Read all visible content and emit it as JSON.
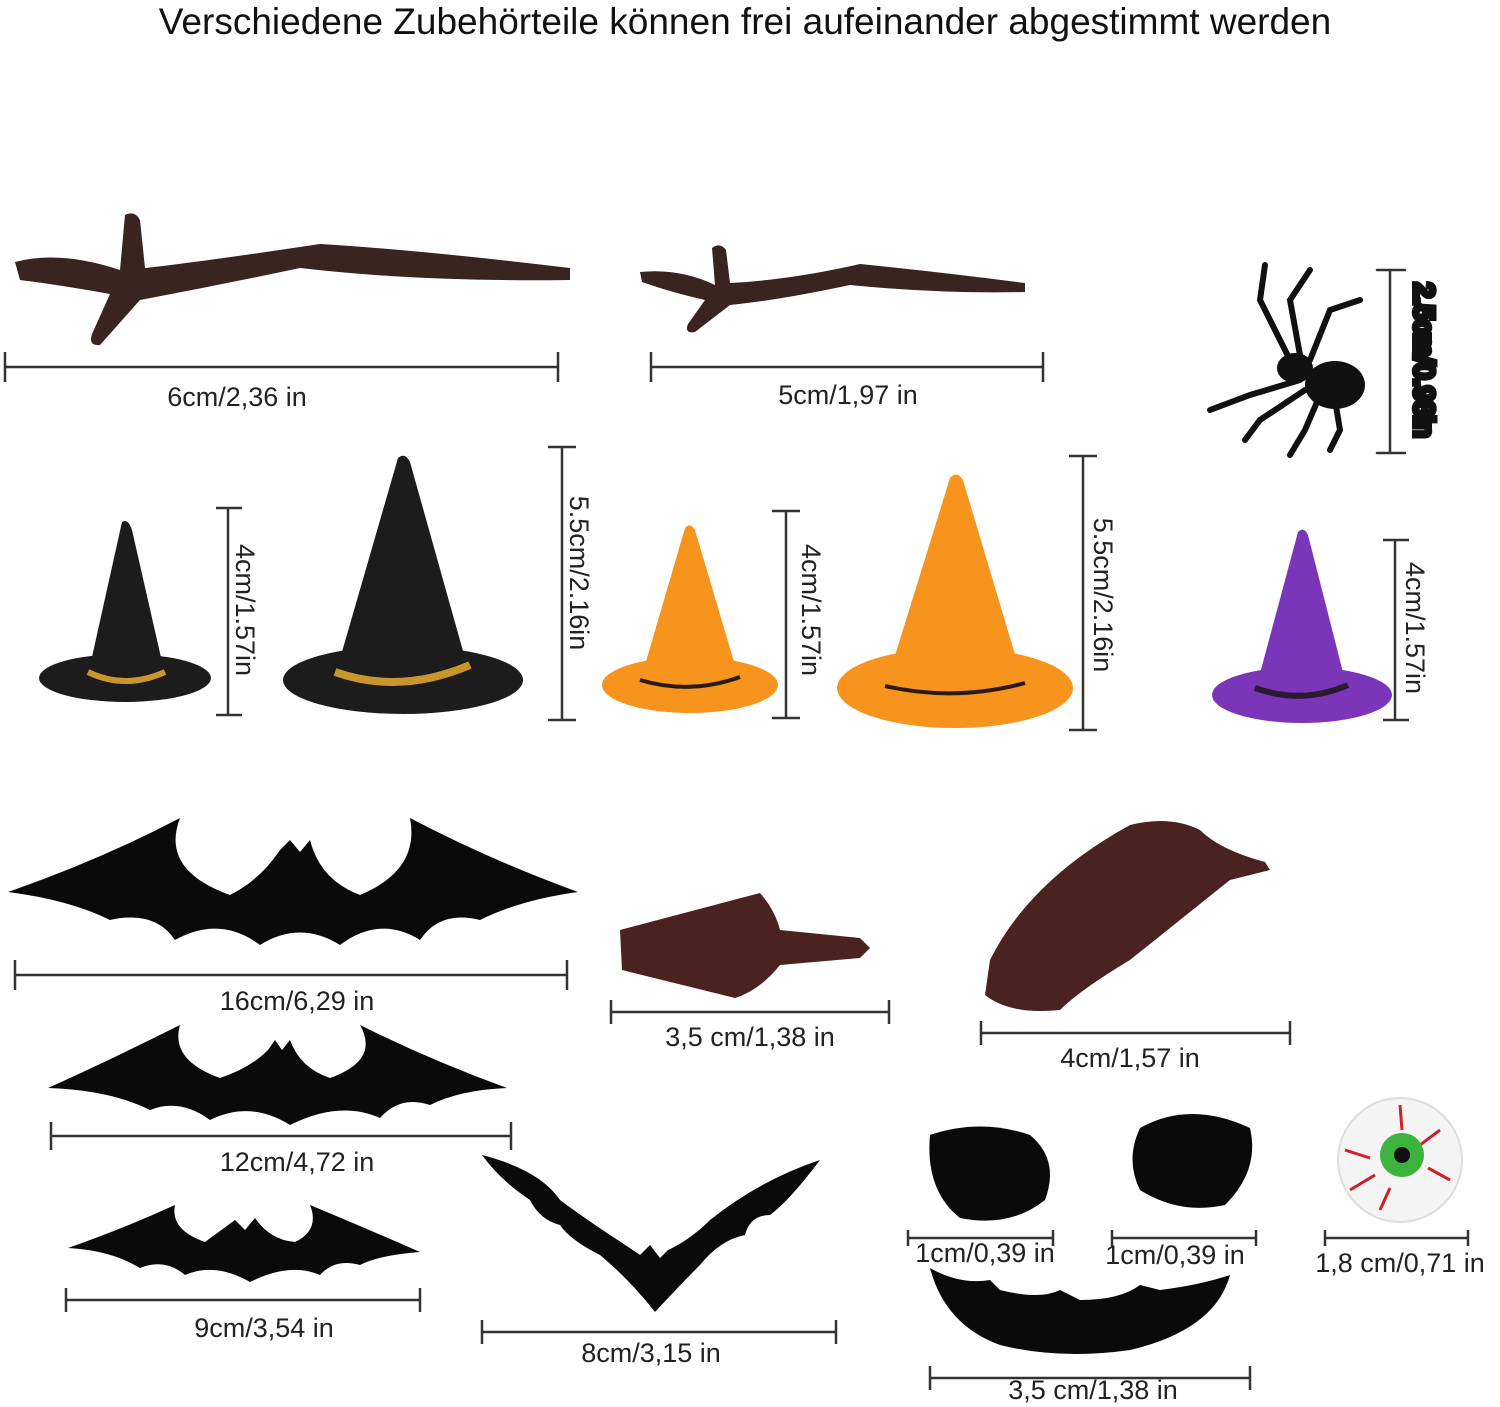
{
  "title": "Verschiedene Zubehörteile können frei aufeinander abgestimmt werden",
  "items": {
    "branch_large": {
      "label": "6cm/2,36 in",
      "color": "#3a2420"
    },
    "branch_small": {
      "label": "5cm/1,97 in",
      "color": "#3a2420"
    },
    "spider": {
      "label": "2.5cm/0.98in",
      "color": "#111111"
    },
    "hat_black_small": {
      "label": "4cm/1.57in",
      "color": "#1c1c1c",
      "band": "#c9962e"
    },
    "hat_black_large": {
      "label": "5.5cm/2.16in",
      "color": "#1c1c1c",
      "band": "#c9962e"
    },
    "hat_orange_small": {
      "label": "4cm/1.57in",
      "color": "#f7941d"
    },
    "hat_orange_large": {
      "label": "5.5cm/2.16in",
      "color": "#f7941d"
    },
    "hat_purple": {
      "label": "4cm/1.57in",
      "color": "#7a35b8"
    },
    "bat_16": {
      "label": "16cm/6,29 in"
    },
    "nose_small": {
      "label": "3,5 cm/1,38 in",
      "color": "#4a2320"
    },
    "nose_large": {
      "label": "4cm/1,57 in",
      "color": "#4a2320"
    },
    "bat_12": {
      "label": "12cm/4,72 in"
    },
    "bat_9": {
      "label": "9cm/3,54 in"
    },
    "bat_8": {
      "label": "8cm/3,15 in"
    },
    "eye_left": {
      "label": "1cm/0,39 in"
    },
    "eye_right": {
      "label": "1cm/0,39 in"
    },
    "eyeball": {
      "label": "1,8 cm/0,71 in",
      "iris": "#3cb33c",
      "veins": "#d0202a"
    },
    "mouth": {
      "label": "3,5 cm/1,38 in"
    }
  }
}
